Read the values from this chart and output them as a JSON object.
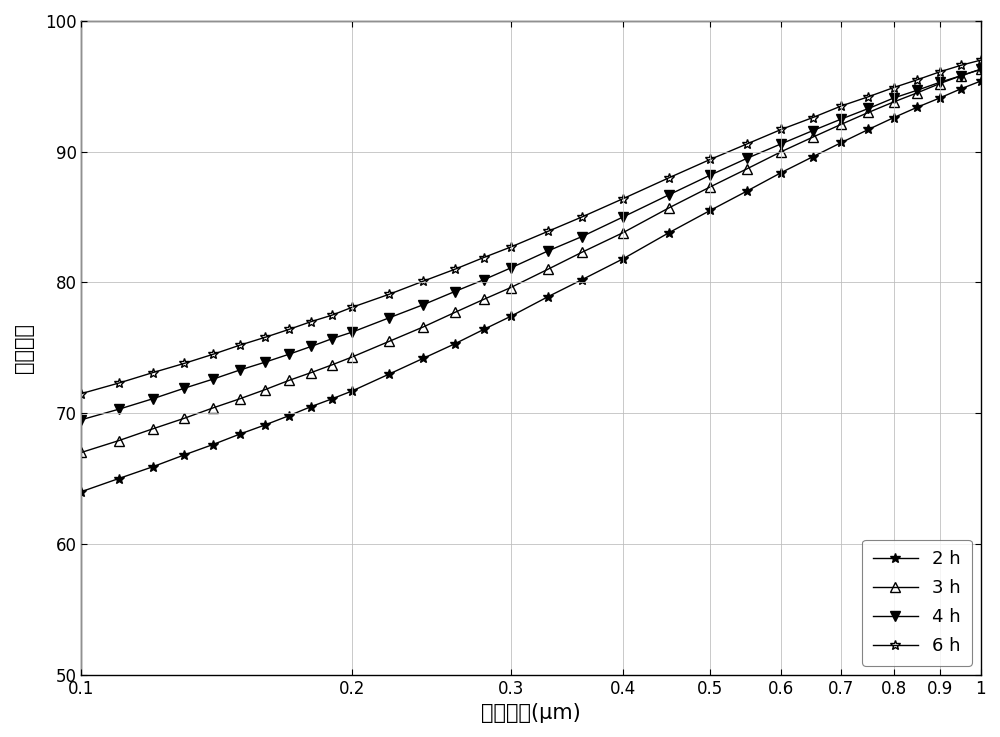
{
  "title": "",
  "xlabel": "额粒尺寸(μm)",
  "ylabel": "累积分布",
  "xlim": [
    0.1,
    1.0
  ],
  "ylim": [
    50,
    100
  ],
  "yticks": [
    50,
    60,
    70,
    80,
    90,
    100
  ],
  "xticks": [
    0.1,
    0.2,
    0.3,
    0.4,
    0.5,
    0.6,
    0.7,
    0.8,
    0.9,
    1.0
  ],
  "series": [
    {
      "label": "2 h",
      "marker": "*",
      "fillstyle": "full",
      "color": "#000000",
      "x": [
        0.1,
        0.11,
        0.12,
        0.13,
        0.14,
        0.15,
        0.16,
        0.17,
        0.18,
        0.19,
        0.2,
        0.22,
        0.24,
        0.26,
        0.28,
        0.3,
        0.33,
        0.36,
        0.4,
        0.45,
        0.5,
        0.55,
        0.6,
        0.65,
        0.7,
        0.75,
        0.8,
        0.85,
        0.9,
        0.95,
        1.0
      ],
      "y": [
        64.0,
        65.0,
        65.9,
        66.8,
        67.6,
        68.4,
        69.1,
        69.8,
        70.5,
        71.1,
        71.7,
        73.0,
        74.2,
        75.3,
        76.4,
        77.4,
        78.9,
        80.2,
        81.8,
        83.8,
        85.5,
        87.0,
        88.4,
        89.6,
        90.7,
        91.7,
        92.6,
        93.4,
        94.1,
        94.8,
        95.4
      ]
    },
    {
      "label": "3 h",
      "marker": "^",
      "fillstyle": "none",
      "color": "#000000",
      "x": [
        0.1,
        0.11,
        0.12,
        0.13,
        0.14,
        0.15,
        0.16,
        0.17,
        0.18,
        0.19,
        0.2,
        0.22,
        0.24,
        0.26,
        0.28,
        0.3,
        0.33,
        0.36,
        0.4,
        0.45,
        0.5,
        0.55,
        0.6,
        0.65,
        0.7,
        0.75,
        0.8,
        0.85,
        0.9,
        0.95,
        1.0
      ],
      "y": [
        67.0,
        67.9,
        68.8,
        69.6,
        70.4,
        71.1,
        71.8,
        72.5,
        73.1,
        73.7,
        74.3,
        75.5,
        76.6,
        77.7,
        78.7,
        79.6,
        81.0,
        82.3,
        83.8,
        85.7,
        87.3,
        88.7,
        90.0,
        91.1,
        92.1,
        93.0,
        93.8,
        94.5,
        95.2,
        95.8,
        96.3
      ]
    },
    {
      "label": "4 h",
      "marker": "v",
      "fillstyle": "full",
      "color": "#000000",
      "x": [
        0.1,
        0.11,
        0.12,
        0.13,
        0.14,
        0.15,
        0.16,
        0.17,
        0.18,
        0.19,
        0.2,
        0.22,
        0.24,
        0.26,
        0.28,
        0.3,
        0.33,
        0.36,
        0.4,
        0.45,
        0.5,
        0.55,
        0.6,
        0.65,
        0.7,
        0.75,
        0.8,
        0.85,
        0.9,
        0.95,
        1.0
      ],
      "y": [
        69.5,
        70.3,
        71.1,
        71.9,
        72.6,
        73.3,
        73.9,
        74.5,
        75.1,
        75.7,
        76.2,
        77.3,
        78.3,
        79.3,
        80.2,
        81.1,
        82.4,
        83.5,
        85.0,
        86.7,
        88.2,
        89.5,
        90.6,
        91.6,
        92.5,
        93.3,
        94.1,
        94.7,
        95.3,
        95.8,
        96.3
      ]
    },
    {
      "label": "6 h",
      "marker": "*",
      "fillstyle": "none",
      "color": "#000000",
      "x": [
        0.1,
        0.11,
        0.12,
        0.13,
        0.14,
        0.15,
        0.16,
        0.17,
        0.18,
        0.19,
        0.2,
        0.22,
        0.24,
        0.26,
        0.28,
        0.3,
        0.33,
        0.36,
        0.4,
        0.45,
        0.5,
        0.55,
        0.6,
        0.65,
        0.7,
        0.75,
        0.8,
        0.85,
        0.9,
        0.95,
        1.0
      ],
      "y": [
        71.5,
        72.3,
        73.1,
        73.8,
        74.5,
        75.2,
        75.8,
        76.4,
        77.0,
        77.5,
        78.1,
        79.1,
        80.1,
        81.0,
        81.9,
        82.7,
        83.9,
        85.0,
        86.4,
        88.0,
        89.4,
        90.6,
        91.7,
        92.6,
        93.5,
        94.2,
        94.9,
        95.5,
        96.1,
        96.6,
        97.0
      ]
    }
  ],
  "grid_color": "#bbbbbb",
  "background_color": "#ffffff",
  "legend_loc": "lower right",
  "markersize": 7,
  "linewidth": 1.0,
  "fontsize_label": 15,
  "fontsize_tick": 12,
  "fontsize_legend": 13
}
